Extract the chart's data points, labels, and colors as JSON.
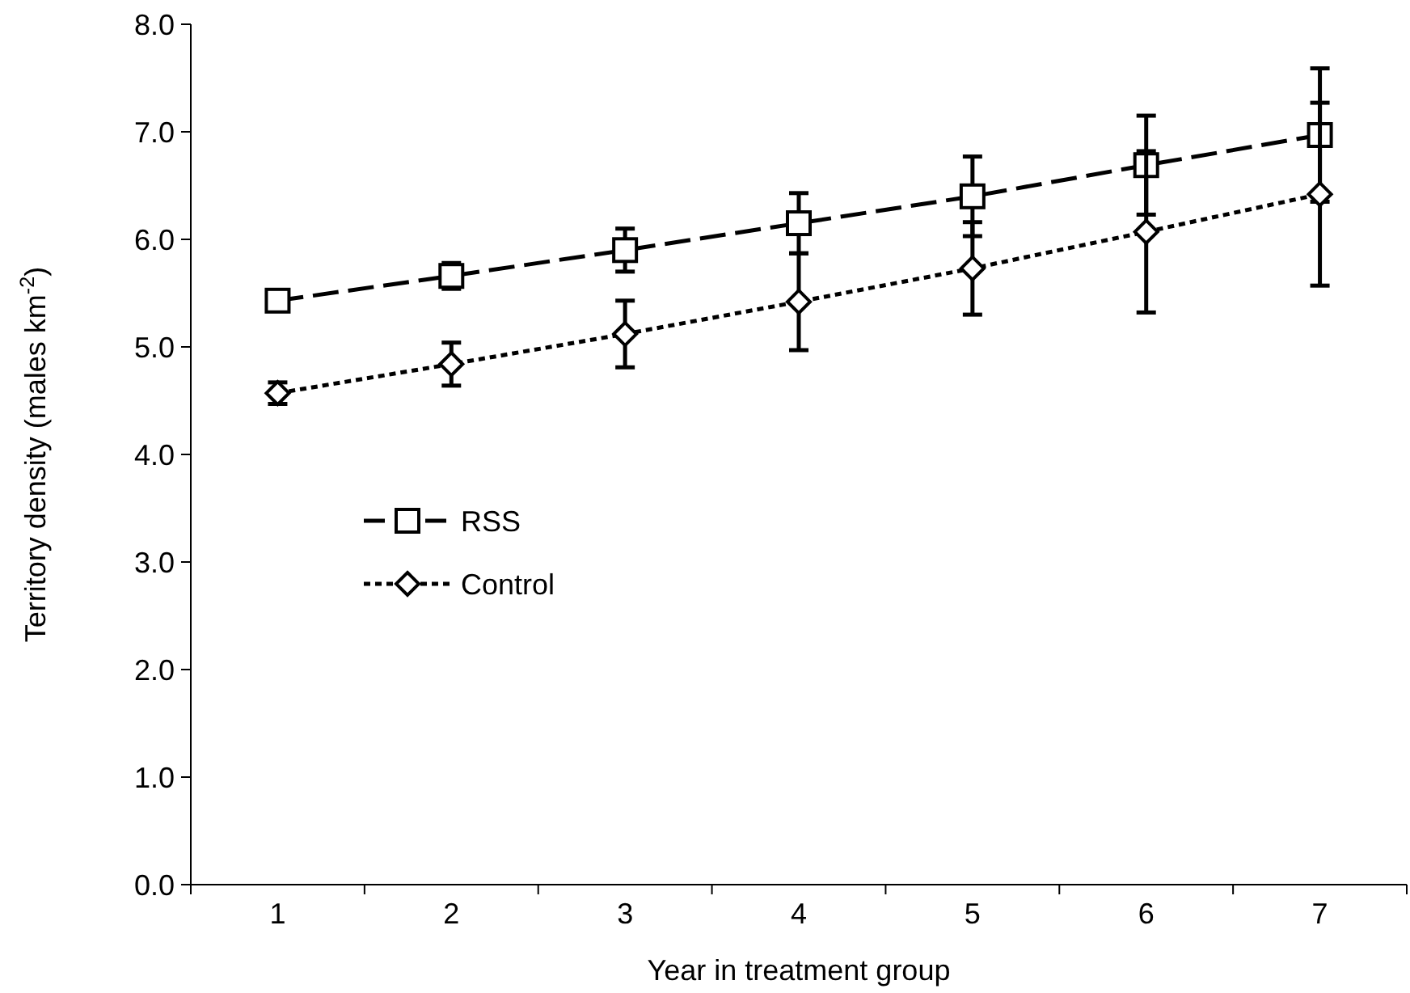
{
  "chart_data": {
    "type": "line",
    "xlabel": "Year in treatment group",
    "ylabel": "Territory density (males km$^{-2}$)",
    "categories": [
      "1",
      "2",
      "3",
      "4",
      "5",
      "6",
      "7"
    ],
    "ylim": [
      0,
      8
    ],
    "yticks": [
      {
        "value": 0,
        "label": "0.0"
      },
      {
        "value": 1,
        "label": "1.0"
      },
      {
        "value": 2,
        "label": "2.0"
      },
      {
        "value": 3,
        "label": "3.0"
      },
      {
        "value": 4,
        "label": "4.0"
      },
      {
        "value": 5,
        "label": "5.0"
      },
      {
        "value": 6,
        "label": "6.0"
      },
      {
        "value": 7,
        "label": "7.0"
      },
      {
        "value": 8,
        "label": "8.0"
      }
    ],
    "grid": false,
    "legend": "left",
    "series": [
      {
        "name": "RSS",
        "color": "#000000",
        "marker": "square",
        "line_style": "dashed",
        "values": [
          5.43,
          5.66,
          5.9,
          6.15,
          6.4,
          6.69,
          6.97
        ],
        "errors": [
          null,
          0.12,
          0.2,
          0.28,
          0.37,
          0.46,
          0.62
        ]
      },
      {
        "name": "Control",
        "color": "#000000",
        "marker": "diamond",
        "line_style": "dotted",
        "values": [
          4.57,
          4.84,
          5.12,
          5.42,
          5.73,
          6.07,
          6.42
        ],
        "errors": [
          0.1,
          0.2,
          0.31,
          0.45,
          0.43,
          0.75,
          0.85
        ]
      }
    ]
  }
}
